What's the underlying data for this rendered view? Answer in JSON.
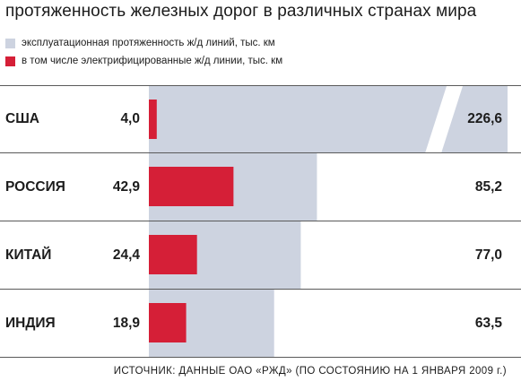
{
  "title": "протяженность железных дорог в различных странах мира",
  "legend": [
    {
      "label": "эксплуатационная протяженность ж/д линий, тыс. км",
      "color": "#cdd3e0"
    },
    {
      "label": "в том числе электрифицированные ж/д линии, тыс. км",
      "color": "#d51f37"
    }
  ],
  "source": "ИСТОЧНИК: ДАННЫЕ ОАО «РЖД» (ПО СОСТОЯНИЮ НА 1 ЯНВАРЯ 2009 г.)",
  "chart_data": {
    "type": "bar",
    "orientation": "horizontal",
    "title": "протяженность железных дорог в различных странах мира",
    "categories": [
      "США",
      "РОССИЯ",
      "КИТАЙ",
      "ИНДИЯ"
    ],
    "series": [
      {
        "name": "эксплуатационная протяженность ж/д линий, тыс. км",
        "values": [
          226.6,
          85.2,
          77.0,
          63.5
        ],
        "labels": [
          "226,6",
          "85,2",
          "77,0",
          "63,5"
        ],
        "color": "#cdd3e0"
      },
      {
        "name": "в том числе электрифицированные ж/д линии, тыс. км",
        "values": [
          4.0,
          42.9,
          24.4,
          18.9
        ],
        "labels": [
          "4,0",
          "42,9",
          "24,4",
          "18,9"
        ],
        "color": "#d51f37"
      }
    ],
    "broken_axis_category": "США",
    "overlap": true,
    "grid": false,
    "legend_position": "top-left"
  }
}
